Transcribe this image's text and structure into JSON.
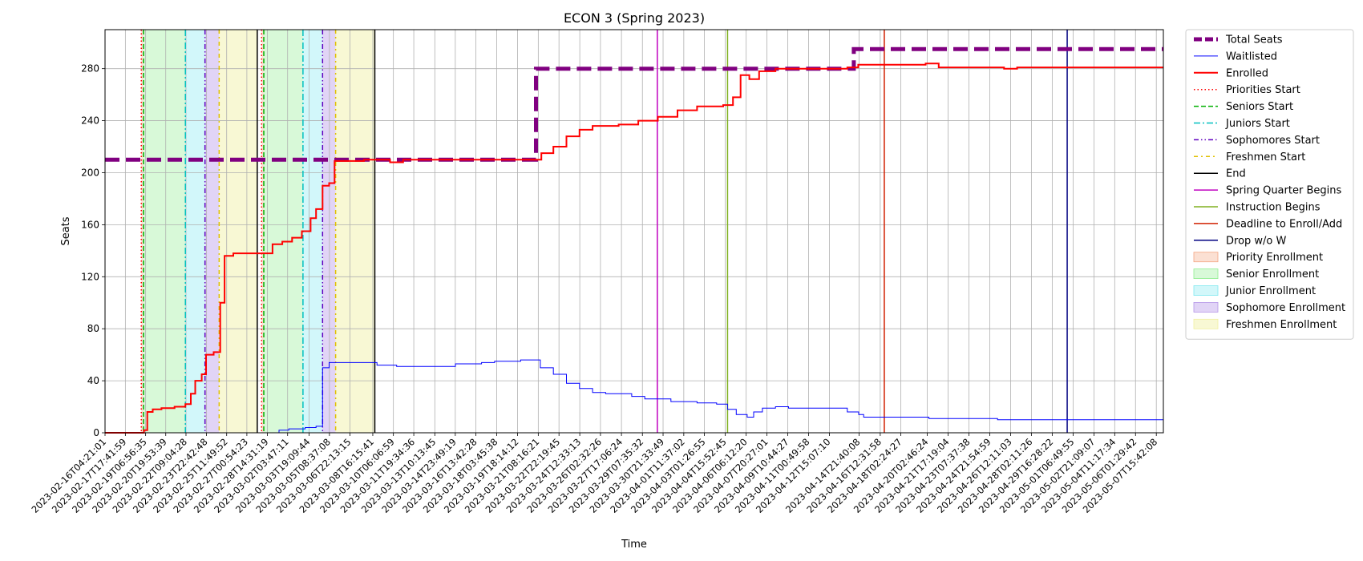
{
  "chart_data": {
    "type": "line",
    "title": "ECON 3 (Spring 2023)",
    "xlabel": "Time",
    "ylabel": "Seats",
    "ylim": [
      0,
      310
    ],
    "yticks": [
      0,
      40,
      80,
      120,
      160,
      200,
      240,
      280
    ],
    "grid": true,
    "legend_position": "outside-right",
    "x_start": "2023-02-16T04:21:01",
    "x_end": "2023-05-08T04:40:00",
    "xtick_labels": [
      "2023-02-16T04:21:01",
      "2023-02-17T17:41:59",
      "2023-02-19T06:56:35",
      "2023-02-20T19:53:39",
      "2023-02-22T09:04:28",
      "2023-02-23T22:42:48",
      "2023-02-25T11:49:52",
      "2023-02-27T00:54:23",
      "2023-02-28T14:31:19",
      "2023-03-02T03:47:11",
      "2023-03-03T19:09:44",
      "2023-03-05T08:37:08",
      "2023-03-06T22:13:15",
      "2023-03-08T16:15:41",
      "2023-03-10T06:06:59",
      "2023-03-11T19:34:36",
      "2023-03-13T10:13:45",
      "2023-03-14T23:49:19",
      "2023-03-16T13:42:28",
      "2023-03-18T03:45:38",
      "2023-03-19T18:14:12",
      "2023-03-21T08:16:21",
      "2023-03-22T22:19:45",
      "2023-03-24T12:33:13",
      "2023-03-26T02:32:26",
      "2023-03-27T17:06:24",
      "2023-03-29T07:35:32",
      "2023-03-30T21:33:49",
      "2023-04-01T11:37:02",
      "2023-04-03T01:26:55",
      "2023-04-04T15:52:45",
      "2023-04-06T06:12:20",
      "2023-04-07T20:27:01",
      "2023-04-09T10:44:27",
      "2023-04-11T00:49:58",
      "2023-04-12T15:07:10",
      "2023-04-14T21:40:08",
      "2023-04-16T12:31:58",
      "2023-04-18T02:24:27",
      "2023-04-20T02:46:24",
      "2023-04-21T17:19:04",
      "2023-04-23T07:37:38",
      "2023-04-24T21:54:59",
      "2023-04-26T12:11:03",
      "2023-04-28T02:11:26",
      "2023-04-29T16:28:22",
      "2023-05-01T06:49:55",
      "2023-05-02T21:09:07",
      "2023-05-04T11:17:34",
      "2023-05-06T01:29:42",
      "2023-05-07T15:42:08"
    ],
    "series": [
      {
        "name": "Total Seats",
        "color": "#800080",
        "style": "dashed-thick",
        "points": [
          [
            "2023-02-16T04:21:01",
            210
          ],
          [
            "2023-03-21T04:00:00",
            210
          ],
          [
            "2023-03-21T04:00:00",
            280
          ],
          [
            "2023-04-14T12:00:00",
            280
          ],
          [
            "2023-04-14T12:00:00",
            295
          ],
          [
            "2023-05-08T04:40:00",
            295
          ]
        ]
      },
      {
        "name": "Waitlisted",
        "color": "#0000ff",
        "style": "solid-thin",
        "points": [
          [
            "2023-02-16T04:21:01",
            0
          ],
          [
            "2023-02-28T10:00:00",
            0
          ],
          [
            "2023-03-01T12:00:00",
            2
          ],
          [
            "2023-03-02T06:00:00",
            3
          ],
          [
            "2023-03-03T12:00:00",
            4
          ],
          [
            "2023-03-04T08:00:00",
            5
          ],
          [
            "2023-03-04T20:00:00",
            50
          ],
          [
            "2023-03-05T08:00:00",
            54
          ],
          [
            "2023-03-07T12:00:00",
            54
          ],
          [
            "2023-03-09T00:00:00",
            52
          ],
          [
            "2023-03-10T12:00:00",
            51
          ],
          [
            "2023-03-14T00:00:00",
            51
          ],
          [
            "2023-03-15T00:00:00",
            53
          ],
          [
            "2023-03-17T00:00:00",
            54
          ],
          [
            "2023-03-18T00:00:00",
            55
          ],
          [
            "2023-03-20T00:00:00",
            56
          ],
          [
            "2023-03-21T04:00:00",
            56
          ],
          [
            "2023-03-21T12:00:00",
            50
          ],
          [
            "2023-03-22T12:00:00",
            45
          ],
          [
            "2023-03-23T12:00:00",
            38
          ],
          [
            "2023-03-24T12:00:00",
            34
          ],
          [
            "2023-03-25T12:00:00",
            31
          ],
          [
            "2023-03-26T12:00:00",
            30
          ],
          [
            "2023-03-28T12:00:00",
            28
          ],
          [
            "2023-03-29T12:00:00",
            26
          ],
          [
            "2023-03-31T12:00:00",
            24
          ],
          [
            "2023-04-02T12:00:00",
            23
          ],
          [
            "2023-04-04T00:00:00",
            22
          ],
          [
            "2023-04-04T20:00:00",
            18
          ],
          [
            "2023-04-05T12:00:00",
            14
          ],
          [
            "2023-04-06T08:00:00",
            12
          ],
          [
            "2023-04-06T20:00:00",
            16
          ],
          [
            "2023-04-07T12:00:00",
            19
          ],
          [
            "2023-04-08T12:00:00",
            20
          ],
          [
            "2023-04-09T12:00:00",
            19
          ],
          [
            "2023-04-11T12:00:00",
            19
          ],
          [
            "2023-04-13T12:00:00",
            19
          ],
          [
            "2023-04-14T00:00:00",
            16
          ],
          [
            "2023-04-14T21:00:00",
            14
          ],
          [
            "2023-04-15T06:00:00",
            12
          ],
          [
            "2023-04-20T00:00:00",
            12
          ],
          [
            "2023-04-20T06:00:00",
            11
          ],
          [
            "2023-04-25T00:00:00",
            11
          ],
          [
            "2023-04-25T12:00:00",
            10
          ],
          [
            "2023-05-08T04:40:00",
            10
          ]
        ]
      },
      {
        "name": "Enrolled",
        "color": "#ff0000",
        "style": "solid-thick",
        "points": [
          [
            "2023-02-16T04:21:01",
            0
          ],
          [
            "2023-02-18T20:00:00",
            0
          ],
          [
            "2023-02-19T04:00:00",
            2
          ],
          [
            "2023-02-19T10:00:00",
            16
          ],
          [
            "2023-02-19T20:00:00",
            18
          ],
          [
            "2023-02-20T12:00:00",
            19
          ],
          [
            "2023-02-21T12:00:00",
            20
          ],
          [
            "2023-02-22T08:00:00",
            22
          ],
          [
            "2023-02-22T18:00:00",
            30
          ],
          [
            "2023-02-23T02:00:00",
            40
          ],
          [
            "2023-02-23T14:00:00",
            45
          ],
          [
            "2023-02-23T22:00:00",
            60
          ],
          [
            "2023-02-24T12:00:00",
            62
          ],
          [
            "2023-02-25T00:00:00",
            100
          ],
          [
            "2023-02-25T08:00:00",
            136
          ],
          [
            "2023-02-26T00:00:00",
            138
          ],
          [
            "2023-02-28T12:00:00",
            138
          ],
          [
            "2023-03-01T00:00:00",
            145
          ],
          [
            "2023-03-01T18:00:00",
            147
          ],
          [
            "2023-03-02T12:00:00",
            150
          ],
          [
            "2023-03-03T06:00:00",
            155
          ],
          [
            "2023-03-03T22:00:00",
            165
          ],
          [
            "2023-03-04T08:00:00",
            172
          ],
          [
            "2023-03-04T20:00:00",
            190
          ],
          [
            "2023-03-05T08:00:00",
            192
          ],
          [
            "2023-03-05T18:00:00",
            209
          ],
          [
            "2023-03-08T00:00:00",
            210
          ],
          [
            "2023-03-10T00:00:00",
            208
          ],
          [
            "2023-03-11T00:00:00",
            210
          ],
          [
            "2023-03-21T04:00:00",
            210
          ],
          [
            "2023-03-21T14:00:00",
            215
          ],
          [
            "2023-03-22T12:00:00",
            220
          ],
          [
            "2023-03-23T12:00:00",
            228
          ],
          [
            "2023-03-24T12:00:00",
            233
          ],
          [
            "2023-03-25T12:00:00",
            236
          ],
          [
            "2023-03-27T12:00:00",
            237
          ],
          [
            "2023-03-29T00:00:00",
            240
          ],
          [
            "2023-03-30T12:00:00",
            243
          ],
          [
            "2023-04-01T00:00:00",
            248
          ],
          [
            "2023-04-02T12:00:00",
            251
          ],
          [
            "2023-04-04T12:00:00",
            252
          ],
          [
            "2023-04-05T06:00:00",
            258
          ],
          [
            "2023-04-05T20:00:00",
            275
          ],
          [
            "2023-04-06T12:00:00",
            272
          ],
          [
            "2023-04-07T06:00:00",
            278
          ],
          [
            "2023-04-08T12:00:00",
            280
          ],
          [
            "2023-04-14T00:00:00",
            281
          ],
          [
            "2023-04-14T20:00:00",
            283
          ],
          [
            "2023-04-20T00:00:00",
            284
          ],
          [
            "2023-04-21T00:00:00",
            281
          ],
          [
            "2023-04-26T00:00:00",
            280
          ],
          [
            "2023-04-27T00:00:00",
            281
          ],
          [
            "2023-05-08T04:40:00",
            281
          ]
        ]
      }
    ],
    "markers": [
      {
        "name": "Priorities Start",
        "color": "#ff0000",
        "style": "dotted",
        "times": [
          "2023-02-18T23:00:00",
          "2023-02-28T04:00:00"
        ]
      },
      {
        "name": "Seniors Start",
        "color": "#00b000",
        "style": "dashed",
        "times": [
          "2023-02-19T03:00:00",
          "2023-02-28T08:00:00"
        ]
      },
      {
        "name": "Juniors Start",
        "color": "#00c0c0",
        "style": "dashdot",
        "times": [
          "2023-02-22T08:00:00",
          "2023-03-03T08:00:00"
        ]
      },
      {
        "name": "Sophomores Start",
        "color": "#6000c0",
        "style": "dashdotdot",
        "times": [
          "2023-02-23T20:00:00",
          "2023-03-04T20:00:00"
        ]
      },
      {
        "name": "Freshmen Start",
        "color": "#e0c000",
        "style": "dashdot-sparse",
        "times": [
          "2023-02-24T22:00:00",
          "2023-03-05T20:00:00"
        ]
      },
      {
        "name": "End",
        "color": "#000000",
        "style": "solid",
        "times": [
          "2023-02-27T20:00:00",
          "2023-03-08T20:00:00"
        ]
      },
      {
        "name": "Spring Quarter Begins",
        "color": "#c000c0",
        "style": "solid",
        "times": [
          "2023-03-30T11:00:00"
        ]
      },
      {
        "name": "Instruction Begins",
        "color": "#80b020",
        "style": "solid",
        "times": [
          "2023-04-04T20:00:00"
        ]
      },
      {
        "name": "Deadline to Enroll/Add",
        "color": "#d02000",
        "style": "solid",
        "times": [
          "2023-04-16T20:00:00"
        ]
      },
      {
        "name": "Drop w/o W",
        "color": "#000080",
        "style": "solid",
        "times": [
          "2023-04-30T20:00:00"
        ]
      }
    ],
    "bands": [
      {
        "name": "Priority Enrollment",
        "color": "#f4a582",
        "opacity": 0.35,
        "ranges": [
          [
            "2023-02-18T23:00:00",
            "2023-02-19T03:00:00"
          ],
          [
            "2023-02-28T04:00:00",
            "2023-02-28T08:00:00"
          ]
        ]
      },
      {
        "name": "Senior Enrollment",
        "color": "#90ee90",
        "opacity": 0.35,
        "ranges": [
          [
            "2023-02-19T03:00:00",
            "2023-02-22T08:00:00"
          ],
          [
            "2023-02-28T08:00:00",
            "2023-03-03T08:00:00"
          ]
        ]
      },
      {
        "name": "Junior Enrollment",
        "color": "#7fe8f0",
        "opacity": 0.35,
        "ranges": [
          [
            "2023-02-22T08:00:00",
            "2023-02-23T20:00:00"
          ],
          [
            "2023-03-03T08:00:00",
            "2023-03-04T20:00:00"
          ]
        ]
      },
      {
        "name": "Sophomore Enrollment",
        "color": "#b494e8",
        "opacity": 0.4,
        "ranges": [
          [
            "2023-02-23T20:00:00",
            "2023-02-24T22:00:00"
          ],
          [
            "2023-03-04T20:00:00",
            "2023-03-05T20:00:00"
          ]
        ]
      },
      {
        "name": "Freshmen Enrollment",
        "color": "#f0f0a0",
        "opacity": 0.45,
        "ranges": [
          [
            "2023-02-24T22:00:00",
            "2023-02-27T20:00:00"
          ],
          [
            "2023-03-05T20:00:00",
            "2023-03-08T20:00:00"
          ]
        ]
      }
    ],
    "legend": [
      {
        "label": "Total Seats",
        "kind": "line",
        "color": "#800080",
        "style": "dashed-thick"
      },
      {
        "label": "Waitlisted",
        "kind": "line",
        "color": "#0000ff",
        "style": "solid-thin"
      },
      {
        "label": "Enrolled",
        "kind": "line",
        "color": "#ff0000",
        "style": "solid-thick"
      },
      {
        "label": "Priorities Start",
        "kind": "line",
        "color": "#ff0000",
        "style": "dotted"
      },
      {
        "label": "Seniors Start",
        "kind": "line",
        "color": "#00b000",
        "style": "dashed"
      },
      {
        "label": "Juniors Start",
        "kind": "line",
        "color": "#00c0c0",
        "style": "dashdot"
      },
      {
        "label": "Sophomores Start",
        "kind": "line",
        "color": "#6000c0",
        "style": "dashdotdot"
      },
      {
        "label": "Freshmen Start",
        "kind": "line",
        "color": "#e0c000",
        "style": "dashdot-sparse"
      },
      {
        "label": "End",
        "kind": "line",
        "color": "#000000",
        "style": "solid"
      },
      {
        "label": "Spring Quarter Begins",
        "kind": "line",
        "color": "#c000c0",
        "style": "solid"
      },
      {
        "label": "Instruction Begins",
        "kind": "line",
        "color": "#80b020",
        "style": "solid"
      },
      {
        "label": "Deadline to Enroll/Add",
        "kind": "line",
        "color": "#d02000",
        "style": "solid"
      },
      {
        "label": "Drop w/o W",
        "kind": "line",
        "color": "#000080",
        "style": "solid"
      },
      {
        "label": "Priority Enrollment",
        "kind": "patch",
        "color": "#f4a582",
        "opacity": 0.35
      },
      {
        "label": "Senior Enrollment",
        "kind": "patch",
        "color": "#90ee90",
        "opacity": 0.35
      },
      {
        "label": "Junior Enrollment",
        "kind": "patch",
        "color": "#7fe8f0",
        "opacity": 0.35
      },
      {
        "label": "Sophomore Enrollment",
        "kind": "patch",
        "color": "#b494e8",
        "opacity": 0.4
      },
      {
        "label": "Freshmen Enrollment",
        "kind": "patch",
        "color": "#f0f0a0",
        "opacity": 0.45
      }
    ]
  }
}
